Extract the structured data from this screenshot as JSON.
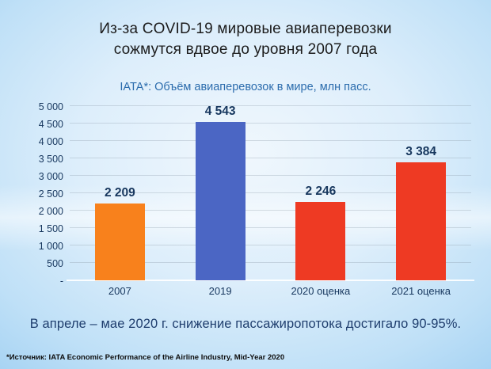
{
  "slide": {
    "title_line1": "Из-за COVID-19 мировые авиаперевозки",
    "title_line2": "сожмутся вдвое до уровня 2007 года",
    "subtitle": "IATA*: Объём авиаперевозок в мире, млн пасс.",
    "statement": "В апреле – мае 2020 г. снижение пассажиропотока достигало 90-95%.",
    "footnote": "*Источник: IATA Economic Performance of the Airline Industry, Mid-Year 2020"
  },
  "colors": {
    "bar_2007": "#f8811c",
    "bar_2019": "#4b66c4",
    "bar_estimate": "#ee3a23",
    "axis_text": "#17375e",
    "value_text": "#17375e",
    "subtitle_text": "#2b6cad",
    "statement_text": "#1f3e6e",
    "background_edge": "#93c9f0",
    "background_center": "#f0f7fd"
  },
  "chart_data": {
    "type": "bar",
    "title": "IATA*: Объём авиаперевозок в мире, млн пасс.",
    "xlabel": "",
    "ylabel": "",
    "categories": [
      "2007",
      "2019",
      "2020 оценка",
      "2021 оценка"
    ],
    "values": [
      2209,
      4543,
      2246,
      3384
    ],
    "value_labels": [
      "2 209",
      "4 543",
      "2 246",
      "3 384"
    ],
    "bar_colors": [
      "#f8811c",
      "#4b66c4",
      "#ee3a23",
      "#ee3a23"
    ],
    "ylim": [
      0,
      5000
    ],
    "ytick_interval": 500,
    "ytick_labels": [
      "-",
      "500",
      "1 000",
      "1 500",
      "2 000",
      "2 500",
      "3 000",
      "3 500",
      "4 000",
      "4 500",
      "5 000"
    ],
    "grid": true,
    "legend": false
  }
}
